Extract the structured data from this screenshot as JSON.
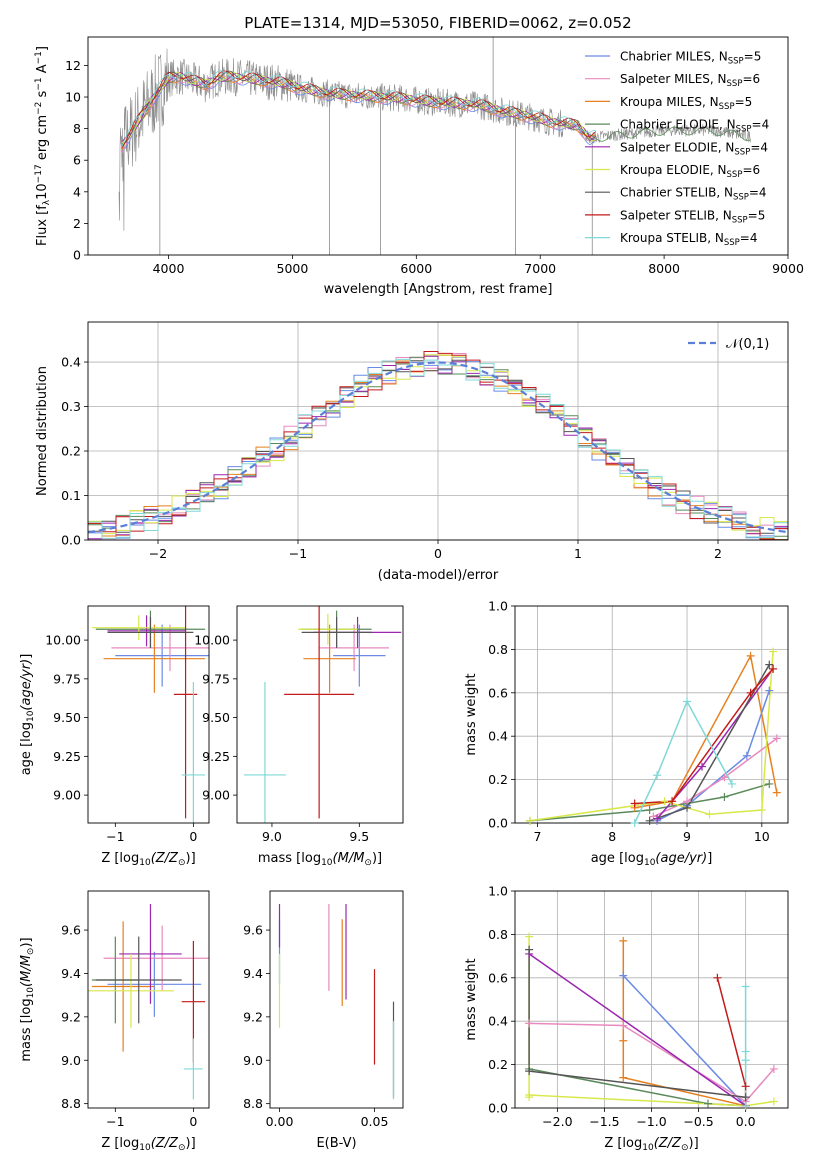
{
  "figure": {
    "title": "PLATE=1314, MJD=53050, FIBERID=0062, z=0.052"
  },
  "colors": {
    "Chabrier MILES": "#6a8ae6",
    "Salpeter MILES": "#e88abf",
    "Kroupa MILES": "#e6801f",
    "Chabrier ELODIE": "#5a8a5a",
    "Salpeter ELODIE": "#9b27b0",
    "Kroupa ELODIE": "#d8e84a",
    "Chabrier STELIB": "#555555",
    "Salpeter STELIB": "#c41a1a",
    "Kroupa STELIB": "#7fd8d8"
  },
  "legend_spectrum": [
    {
      "label": "Chabrier MILES, N",
      "sub": "SSP",
      "tail": "=5"
    },
    {
      "label": "Salpeter MILES, N",
      "sub": "SSP",
      "tail": "=6"
    },
    {
      "label": "Kroupa MILES, N",
      "sub": "SSP",
      "tail": "=5"
    },
    {
      "label": "Chabrier ELODIE, N",
      "sub": "SSP",
      "tail": "=4"
    },
    {
      "label": "Salpeter ELODIE, N",
      "sub": "SSP",
      "tail": "=4"
    },
    {
      "label": "Kroupa ELODIE, N",
      "sub": "SSP",
      "tail": "=6"
    },
    {
      "label": "Chabrier STELIB, N",
      "sub": "SSP",
      "tail": "=4"
    },
    {
      "label": "Salpeter STELIB, N",
      "sub": "SSP",
      "tail": "=5"
    },
    {
      "label": "Kroupa STELIB, N",
      "sub": "SSP",
      "tail": "=4"
    }
  ],
  "chart_data": [
    {
      "id": "spectrum",
      "type": "line",
      "xlabel": "wavelength [Angstrom, rest frame]",
      "ylabel": "Flux [f_λ 10^-17 erg cm^-2 s^-1 A^-1]",
      "xlim": [
        3350,
        9000
      ],
      "ylim": [
        0,
        13.8
      ],
      "xticks": [
        4000,
        5000,
        6000,
        7000,
        8000,
        9000
      ],
      "yticks": [
        0,
        2,
        4,
        6,
        8,
        10,
        12
      ],
      "data_series_note": "observed spectrum (grey) with nine model fits",
      "continuum": {
        "x": [
          3600,
          3700,
          3800,
          3900,
          4000,
          4100,
          4200,
          4300,
          4400,
          4500,
          4700,
          4900,
          5100,
          5300,
          5500,
          5700,
          5900,
          6100,
          6300,
          6500,
          6700,
          6900,
          7100,
          7300,
          7400,
          7600,
          8000,
          8400,
          8700
        ],
        "y": [
          6.6,
          7.8,
          9.0,
          10.2,
          11.2,
          11.3,
          11.0,
          10.8,
          11.2,
          11.3,
          11.1,
          10.9,
          10.5,
          10.2,
          10.1,
          10.0,
          9.9,
          9.7,
          9.6,
          9.5,
          9.1,
          8.8,
          8.4,
          8.2,
          7.4,
          7.6,
          7.9,
          7.9,
          7.5
        ]
      },
      "grid": false,
      "legend": "top-right"
    },
    {
      "id": "residuals",
      "type": "histogram",
      "xlabel": "(data-model)/error",
      "ylabel": "Normed distribution",
      "xlim": [
        -2.5,
        2.5
      ],
      "ylim": [
        0,
        0.49
      ],
      "xticks": [
        -2,
        -1,
        0,
        1,
        2
      ],
      "yticks": [
        0.0,
        0.1,
        0.2,
        0.3,
        0.4
      ],
      "bin_width": 0.1,
      "reference_curve": {
        "label": "𝒩(0,1)",
        "mean": 0,
        "sigma": 1
      },
      "grid": true,
      "legend": "top-right"
    },
    {
      "id": "age_vs_Z",
      "type": "errorbar",
      "xlabel": "Z [log10(Z/Z⊙)]",
      "ylabel": "age [log10(age/yr)]",
      "xlim": [
        -1.35,
        0.2
      ],
      "ylim": [
        8.82,
        10.22
      ],
      "xticks": [
        -1,
        0
      ],
      "yticks": [
        9.0,
        9.25,
        9.5,
        9.75,
        10.0
      ],
      "points": [
        {
          "model": "Chabrier MILES",
          "x": -0.4,
          "xerr": 0.6,
          "y": 9.9,
          "yerr": 0.2
        },
        {
          "model": "Salpeter MILES",
          "x": -0.3,
          "xerr": 0.75,
          "y": 9.95,
          "yerr": 0.15
        },
        {
          "model": "Kroupa MILES",
          "x": -0.5,
          "xerr": 0.65,
          "y": 9.88,
          "yerr": 0.22
        },
        {
          "model": "Chabrier ELODIE",
          "x": -0.55,
          "xerr": 0.7,
          "y": 10.07,
          "yerr": 0.12
        },
        {
          "model": "Salpeter ELODIE",
          "x": -0.6,
          "xerr": 0.5,
          "y": 10.06,
          "yerr": 0.1
        },
        {
          "model": "Kroupa ELODIE",
          "x": -0.7,
          "xerr": 0.6,
          "y": 10.08,
          "yerr": 0.08
        },
        {
          "model": "Chabrier STELIB",
          "x": -0.55,
          "xerr": 0.55,
          "y": 10.05,
          "yerr": 0.1
        },
        {
          "model": "Salpeter STELIB",
          "x": -0.1,
          "xerr": 0.15,
          "y": 9.65,
          "yerr": 0.8
        },
        {
          "model": "Kroupa STELIB",
          "x": 0.0,
          "xerr": 0.15,
          "y": 9.13,
          "yerr": 0.6
        }
      ]
    },
    {
      "id": "age_vs_mass",
      "type": "errorbar",
      "xlabel": "mass [log10(M/M⊙)]",
      "ylabel": "",
      "xlim": [
        8.8,
        9.75
      ],
      "ylim": [
        8.82,
        10.22
      ],
      "xticks": [
        9.0,
        9.5
      ],
      "yticks": [
        9.0,
        9.25,
        9.5,
        9.75,
        10.0
      ],
      "points": [
        {
          "model": "Chabrier MILES",
          "x": 9.5,
          "xerr": 0.15,
          "y": 9.9,
          "yerr": 0.2
        },
        {
          "model": "Salpeter MILES",
          "x": 9.47,
          "xerr": 0.2,
          "y": 9.95,
          "yerr": 0.15
        },
        {
          "model": "Kroupa MILES",
          "x": 9.33,
          "xerr": 0.15,
          "y": 9.88,
          "yerr": 0.22
        },
        {
          "model": "Chabrier ELODIE",
          "x": 9.37,
          "xerr": 0.2,
          "y": 10.07,
          "yerr": 0.12
        },
        {
          "model": "Salpeter ELODIE",
          "x": 9.49,
          "xerr": 0.25,
          "y": 10.05,
          "yerr": 0.1
        },
        {
          "model": "Kroupa ELODIE",
          "x": 9.32,
          "xerr": 0.17,
          "y": 10.07,
          "yerr": 0.1
        },
        {
          "model": "Chabrier STELIB",
          "x": 9.37,
          "xerr": 0.2,
          "y": 10.05,
          "yerr": 0.1
        },
        {
          "model": "Salpeter STELIB",
          "x": 9.27,
          "xerr": 0.2,
          "y": 9.65,
          "yerr": 0.8
        },
        {
          "model": "Kroupa STELIB",
          "x": 8.96,
          "xerr": 0.12,
          "y": 9.13,
          "yerr": 0.6
        }
      ]
    },
    {
      "id": "massweight_vs_age",
      "type": "line",
      "xlabel": "age [log10(age/yr)]",
      "ylabel": "mass weight",
      "xlim": [
        6.7,
        10.35
      ],
      "ylim": [
        0,
        1.0
      ],
      "xticks": [
        7,
        8,
        9,
        10
      ],
      "yticks": [
        0.0,
        0.2,
        0.4,
        0.6,
        0.8,
        1.0
      ],
      "grid": true,
      "series": [
        {
          "model": "Chabrier MILES",
          "x": [
            8.6,
            9.0,
            9.8,
            10.1
          ],
          "y": [
            0.01,
            0.08,
            0.31,
            0.61
          ]
        },
        {
          "model": "Salpeter MILES",
          "x": [
            8.55,
            9.0,
            9.5,
            10.2
          ],
          "y": [
            0.03,
            0.1,
            0.21,
            0.39
          ]
        },
        {
          "model": "Kroupa MILES",
          "x": [
            8.3,
            8.8,
            9.85,
            10.2
          ],
          "y": [
            0.07,
            0.1,
            0.77,
            0.14
          ]
        },
        {
          "model": "Chabrier ELODIE",
          "x": [
            6.9,
            8.5,
            9.5,
            10.1
          ],
          "y": [
            0.01,
            0.06,
            0.12,
            0.18
          ]
        },
        {
          "model": "Salpeter ELODIE",
          "x": [
            8.6,
            9.2,
            10.15
          ],
          "y": [
            0.02,
            0.26,
            0.71
          ]
        },
        {
          "model": "Kroupa ELODIE",
          "x": [
            6.9,
            8.7,
            9.3,
            10.0,
            10.15
          ],
          "y": [
            0.01,
            0.1,
            0.04,
            0.06,
            0.79
          ]
        },
        {
          "model": "Chabrier STELIB",
          "x": [
            8.5,
            9.0,
            10.1
          ],
          "y": [
            0.01,
            0.07,
            0.73
          ]
        },
        {
          "model": "Salpeter STELIB",
          "x": [
            8.3,
            8.8,
            9.85,
            10.15
          ],
          "y": [
            0.09,
            0.1,
            0.6,
            0.71
          ]
        },
        {
          "model": "Kroupa STELIB",
          "x": [
            8.3,
            8.6,
            9.0,
            9.6
          ],
          "y": [
            0.0,
            0.22,
            0.56,
            0.18
          ]
        }
      ]
    },
    {
      "id": "mass_vs_Z",
      "type": "errorbar",
      "xlabel": "Z [log10(Z/Z⊙)]",
      "ylabel": "mass [log10(M/M⊙)]",
      "xlim": [
        -1.35,
        0.2
      ],
      "ylim": [
        8.78,
        9.78
      ],
      "xticks": [
        -1,
        0
      ],
      "yticks": [
        8.8,
        9.0,
        9.2,
        9.4,
        9.6
      ],
      "points": [
        {
          "model": "Chabrier MILES",
          "x": -0.5,
          "xerr": 0.6,
          "y": 9.35,
          "yerr": 0.15
        },
        {
          "model": "Salpeter MILES",
          "x": -0.4,
          "xerr": 0.75,
          "y": 9.47,
          "yerr": 0.15
        },
        {
          "model": "Kroupa MILES",
          "x": -0.9,
          "xerr": 0.4,
          "y": 9.34,
          "yerr": 0.3
        },
        {
          "model": "Chabrier ELODIE",
          "x": -1.0,
          "xerr": 0.3,
          "y": 9.37,
          "yerr": 0.2
        },
        {
          "model": "Salpeter ELODIE",
          "x": -0.55,
          "xerr": 0.4,
          "y": 9.49,
          "yerr": 0.23
        },
        {
          "model": "Kroupa ELODIE",
          "x": -0.8,
          "xerr": 0.55,
          "y": 9.32,
          "yerr": 0.17
        },
        {
          "model": "Chabrier STELIB",
          "x": -0.7,
          "xerr": 0.55,
          "y": 9.37,
          "yerr": 0.2
        },
        {
          "model": "Salpeter STELIB",
          "x": 0.0,
          "xerr": 0.15,
          "y": 9.27,
          "yerr": 0.28
        },
        {
          "model": "Kroupa STELIB",
          "x": 0.0,
          "xerr": 0.12,
          "y": 8.96,
          "yerr": 0.14
        }
      ]
    },
    {
      "id": "mass_vs_ebv",
      "type": "errorbar",
      "xlabel": "E(B-V)",
      "ylabel": "",
      "xlim": [
        -0.005,
        0.065
      ],
      "ylim": [
        8.78,
        9.78
      ],
      "xticks": [
        0.0,
        0.05
      ],
      "yticks": [
        8.8,
        9.0,
        9.2,
        9.4,
        9.6
      ],
      "points": [
        {
          "model": "Chabrier MILES",
          "x": 0.0,
          "xerr": 0,
          "y": 9.5,
          "yerr": 0.15
        },
        {
          "model": "Salpeter MILES",
          "x": 0.026,
          "xerr": 0,
          "y": 9.52,
          "yerr": 0.2
        },
        {
          "model": "Kroupa MILES",
          "x": 0.033,
          "xerr": 0,
          "y": 9.45,
          "yerr": 0.2
        },
        {
          "model": "Salpeter ELODIE",
          "x": 0.0,
          "xerr": 0,
          "y": 9.62,
          "yerr": 0.1
        },
        {
          "model": "Kroupa ELODIE",
          "x": 0.0,
          "xerr": 0,
          "y": 9.32,
          "yerr": 0.17
        },
        {
          "model": "Salpeter ELODIE 2",
          "x": 0.035,
          "xerr": 0,
          "y": 9.5,
          "yerr": 0.22
        },
        {
          "model": "Salpeter STELIB",
          "x": 0.05,
          "xerr": 0,
          "y": 9.2,
          "yerr": 0.22
        },
        {
          "model": "Chabrier STELIB",
          "x": 0.06,
          "xerr": 0,
          "y": 9.05,
          "yerr": 0.22
        },
        {
          "model": "Kroupa STELIB",
          "x": 0.06,
          "xerr": 0,
          "y": 9.0,
          "yerr": 0.18
        }
      ]
    },
    {
      "id": "massweight_vs_Z",
      "type": "line",
      "xlabel": "Z [log10(Z/Z⊙)]",
      "ylabel": "mass weight",
      "xlim": [
        -2.45,
        0.45
      ],
      "ylim": [
        0,
        1.0
      ],
      "xticks": [
        -2.0,
        -1.5,
        -1.0,
        -0.5,
        0.0
      ],
      "yticks": [
        0.0,
        0.2,
        0.4,
        0.6,
        0.8,
        1.0
      ],
      "grid": true,
      "series": [
        {
          "model": "Chabrier MILES",
          "x": [
            -1.3,
            0.0
          ],
          "y": [
            0.61,
            0.01
          ]
        },
        {
          "model": "Salpeter MILES",
          "x": [
            -2.3,
            -1.3,
            0.0,
            0.3
          ],
          "y": [
            0.39,
            0.38,
            0.03,
            0.18
          ]
        },
        {
          "model": "Kroupa MILES",
          "x": [
            -1.3,
            -1.3,
            -1.3,
            0.0
          ],
          "y": [
            0.77,
            0.31,
            0.14,
            0.01
          ]
        },
        {
          "model": "Chabrier ELODIE",
          "x": [
            -2.3,
            -0.4,
            0.0
          ],
          "y": [
            0.18,
            0.02,
            0.01
          ]
        },
        {
          "model": "Salpeter ELODIE",
          "x": [
            -2.3,
            0.0
          ],
          "y": [
            0.71,
            0.01
          ]
        },
        {
          "model": "Kroupa ELODIE",
          "x": [
            -2.3,
            -2.3,
            -2.3,
            0.0,
            0.3
          ],
          "y": [
            0.79,
            0.05,
            0.06,
            0.01,
            0.03
          ]
        },
        {
          "model": "Chabrier STELIB",
          "x": [
            -2.3,
            -2.3,
            0.0
          ],
          "y": [
            0.73,
            0.17,
            0.05
          ]
        },
        {
          "model": "Salpeter STELIB",
          "x": [
            -0.3,
            0.0,
            0.0
          ],
          "y": [
            0.6,
            0.1,
            0.01
          ]
        },
        {
          "model": "Kroupa STELIB",
          "x": [
            0.0,
            0.0,
            0.0,
            0.0
          ],
          "y": [
            0.56,
            0.26,
            0.22,
            0.01
          ]
        }
      ]
    }
  ]
}
